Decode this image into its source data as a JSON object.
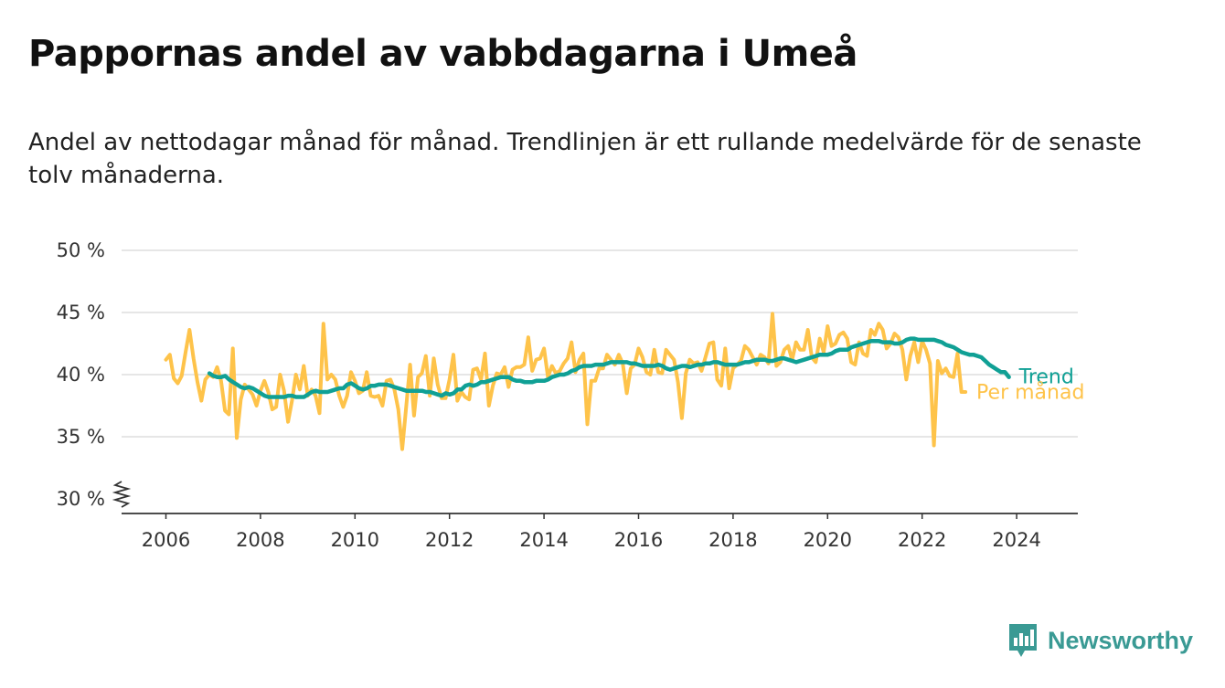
{
  "header": {
    "title": "Pappornas andel av vabbdagarna i Umeå",
    "subtitle": "Andel av nettodagar månad för månad. Trendlinjen är ett rullande medelvärde för de senaste tolv månaderna."
  },
  "branding": {
    "name": "Newsworthy",
    "color": "#3a9a94",
    "logo_icon": "bar-chart-speech-bubble-icon"
  },
  "colors": {
    "trend": "#10a095",
    "monthly": "#fec34a",
    "grid": "#dddddd",
    "axis": "#333333"
  },
  "chart_data": {
    "type": "line",
    "title": "Pappornas andel av vabbdagarna i Umeå",
    "subtitle": "Andel av nettodagar månad för månad. Trendlinjen är ett rullande medelvärde för de senaste tolv månaderna.",
    "y_unit": "%",
    "ylim": [
      30,
      50
    ],
    "y_axis_break": true,
    "y_ticks": [
      30,
      35,
      40,
      45,
      50
    ],
    "y_tick_labels": [
      "30 %",
      "35 %",
      "40 %",
      "45 %",
      "50 %"
    ],
    "x_ticks": [
      2006,
      2008,
      2010,
      2012,
      2014,
      2016,
      2018,
      2020,
      2022,
      2024
    ],
    "x_tick_labels": [
      "2006",
      "2008",
      "2010",
      "2012",
      "2014",
      "2016",
      "2018",
      "2020",
      "2022",
      "2024"
    ],
    "xlim": [
      2005.1,
      2025.3
    ],
    "grid": "horizontal",
    "legend": "direct labels at line ends",
    "series": [
      {
        "name": "Trend",
        "x_start": 2006.92,
        "step": 0.08333,
        "values": [
          40.1,
          39.9,
          39.8,
          39.8,
          39.9,
          39.6,
          39.4,
          39.2,
          39.0,
          38.9,
          39.0,
          38.9,
          38.7,
          38.5,
          38.3,
          38.2,
          38.2,
          38.2,
          38.2,
          38.2,
          38.3,
          38.3,
          38.2,
          38.2,
          38.2,
          38.4,
          38.6,
          38.7,
          38.6,
          38.6,
          38.6,
          38.7,
          38.8,
          38.9,
          38.9,
          39.2,
          39.3,
          39.1,
          38.9,
          38.8,
          38.9,
          39.1,
          39.1,
          39.2,
          39.2,
          39.2,
          39.1,
          39.0,
          38.9,
          38.8,
          38.7,
          38.7,
          38.7,
          38.7,
          38.7,
          38.6,
          38.6,
          38.5,
          38.4,
          38.3,
          38.5,
          38.4,
          38.5,
          38.8,
          38.8,
          39.1,
          39.2,
          39.1,
          39.2,
          39.4,
          39.4,
          39.5,
          39.6,
          39.7,
          39.8,
          39.8,
          39.8,
          39.6,
          39.5,
          39.5,
          39.4,
          39.4,
          39.4,
          39.5,
          39.5,
          39.5,
          39.6,
          39.8,
          39.9,
          40.0,
          40.0,
          40.1,
          40.3,
          40.4,
          40.6,
          40.7,
          40.7,
          40.7,
          40.8,
          40.8,
          40.8,
          40.9,
          41.0,
          41.0,
          41.0,
          41.0,
          41.0,
          40.9,
          40.9,
          40.8,
          40.7,
          40.7,
          40.7,
          40.7,
          40.8,
          40.7,
          40.5,
          40.4,
          40.5,
          40.6,
          40.7,
          40.7,
          40.6,
          40.7,
          40.8,
          40.8,
          40.9,
          40.9,
          41.0,
          41.0,
          40.9,
          40.8,
          40.8,
          40.8,
          40.8,
          40.9,
          41.0,
          41.0,
          41.1,
          41.2,
          41.2,
          41.2,
          41.1,
          41.1,
          41.2,
          41.3,
          41.3,
          41.2,
          41.1,
          41.0,
          41.1,
          41.2,
          41.3,
          41.4,
          41.5,
          41.6,
          41.6,
          41.6,
          41.7,
          41.9,
          42.0,
          42.0,
          42.0,
          42.2,
          42.3,
          42.4,
          42.5,
          42.6,
          42.7,
          42.7,
          42.7,
          42.6,
          42.6,
          42.6,
          42.5,
          42.5,
          42.6,
          42.8,
          42.9,
          42.9,
          42.8,
          42.8,
          42.8,
          42.8,
          42.8,
          42.7,
          42.6,
          42.4,
          42.3,
          42.2,
          42.0,
          41.8,
          41.7,
          41.6,
          41.6,
          41.5,
          41.4,
          41.1,
          40.8,
          40.6,
          40.4,
          40.2,
          40.2,
          39.8
        ]
      },
      {
        "name": "Per månad",
        "x_start": 2006.0,
        "step": 0.08333,
        "values": [
          41.2,
          41.6,
          39.7,
          39.3,
          39.9,
          41.8,
          43.6,
          41.3,
          39.4,
          37.9,
          39.6,
          40.0,
          39.8,
          40.6,
          39.5,
          37.1,
          36.8,
          42.1,
          34.9,
          38.0,
          39.2,
          38.8,
          38.4,
          37.5,
          38.7,
          39.5,
          38.6,
          37.2,
          37.4,
          40.0,
          38.7,
          36.2,
          37.9,
          40.0,
          38.8,
          40.7,
          38.3,
          38.8,
          38.3,
          36.9,
          44.1,
          39.6,
          40.0,
          39.6,
          38.3,
          37.4,
          38.3,
          40.2,
          39.5,
          38.5,
          38.7,
          40.2,
          38.3,
          38.2,
          38.3,
          37.5,
          39.5,
          39.6,
          38.8,
          37.2,
          34.0,
          37.4,
          40.8,
          36.7,
          39.8,
          40.1,
          41.5,
          38.3,
          41.3,
          39.2,
          38.1,
          38.1,
          39.6,
          41.6,
          37.9,
          38.6,
          38.2,
          38.0,
          40.4,
          40.5,
          39.6,
          41.7,
          37.5,
          39.1,
          40.1,
          40.0,
          40.6,
          39.0,
          40.4,
          40.6,
          40.6,
          40.8,
          43.0,
          40.3,
          41.2,
          41.3,
          42.1,
          39.8,
          40.7,
          40.1,
          40.3,
          40.9,
          41.3,
          42.6,
          40.2,
          41.2,
          41.7,
          36.0,
          39.5,
          39.5,
          40.5,
          40.5,
          41.6,
          41.2,
          40.8,
          41.6,
          40.9,
          38.5,
          40.5,
          40.8,
          42.1,
          41.4,
          40.2,
          40.0,
          42.0,
          40.2,
          40.1,
          42.0,
          41.6,
          41.2,
          39.4,
          36.5,
          40.1,
          41.2,
          40.9,
          41.0,
          40.3,
          41.4,
          42.5,
          42.6,
          39.6,
          39.1,
          42.1,
          38.9,
          40.5,
          40.8,
          41.1,
          42.3,
          42.0,
          41.4,
          40.8,
          41.6,
          41.4,
          40.9,
          44.9,
          40.7,
          41.0,
          42.0,
          42.3,
          41.2,
          42.6,
          42.0,
          42.0,
          43.6,
          41.4,
          41.0,
          42.9,
          41.8,
          43.9,
          42.3,
          42.5,
          43.2,
          43.4,
          42.9,
          41.0,
          40.8,
          42.6,
          41.7,
          41.5,
          43.6,
          43.2,
          44.1,
          43.6,
          42.1,
          42.5,
          43.3,
          43.0,
          42.0,
          39.6,
          41.5,
          42.6,
          41.0,
          42.7,
          42.0,
          40.9,
          34.3,
          41.1,
          40.1,
          40.5,
          39.9,
          39.8,
          41.7,
          38.6,
          38.6
        ]
      }
    ]
  }
}
